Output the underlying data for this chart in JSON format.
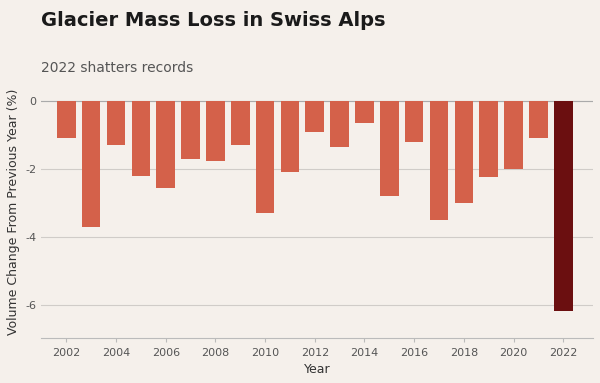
{
  "years": [
    2002,
    2003,
    2004,
    2005,
    2006,
    2007,
    2008,
    2009,
    2010,
    2011,
    2012,
    2013,
    2014,
    2015,
    2016,
    2017,
    2018,
    2019,
    2020,
    2021,
    2022
  ],
  "values": [
    -1.1,
    -3.7,
    -1.3,
    -2.2,
    -2.55,
    -1.7,
    -1.75,
    -1.3,
    -3.3,
    -2.1,
    -0.9,
    -1.35,
    -0.65,
    -2.8,
    -1.2,
    -3.5,
    -3.0,
    -2.25,
    -2.0,
    -1.1,
    -6.2
  ],
  "bar_color_regular": "#d4614a",
  "bar_color_highlight": "#6b0f10",
  "title": "Glacier Mass Loss in Swiss Alps",
  "subtitle": "2022 shatters records",
  "xlabel": "Year",
  "ylabel": "Volume Change From Previous Year (%)",
  "ylim": [
    -7,
    0.5
  ],
  "yticks": [
    0,
    -2,
    -4,
    -6
  ],
  "background_color": "#f5f0eb",
  "grid_color": "#d0ccc8",
  "title_fontsize": 14,
  "subtitle_fontsize": 10,
  "axis_label_fontsize": 9
}
